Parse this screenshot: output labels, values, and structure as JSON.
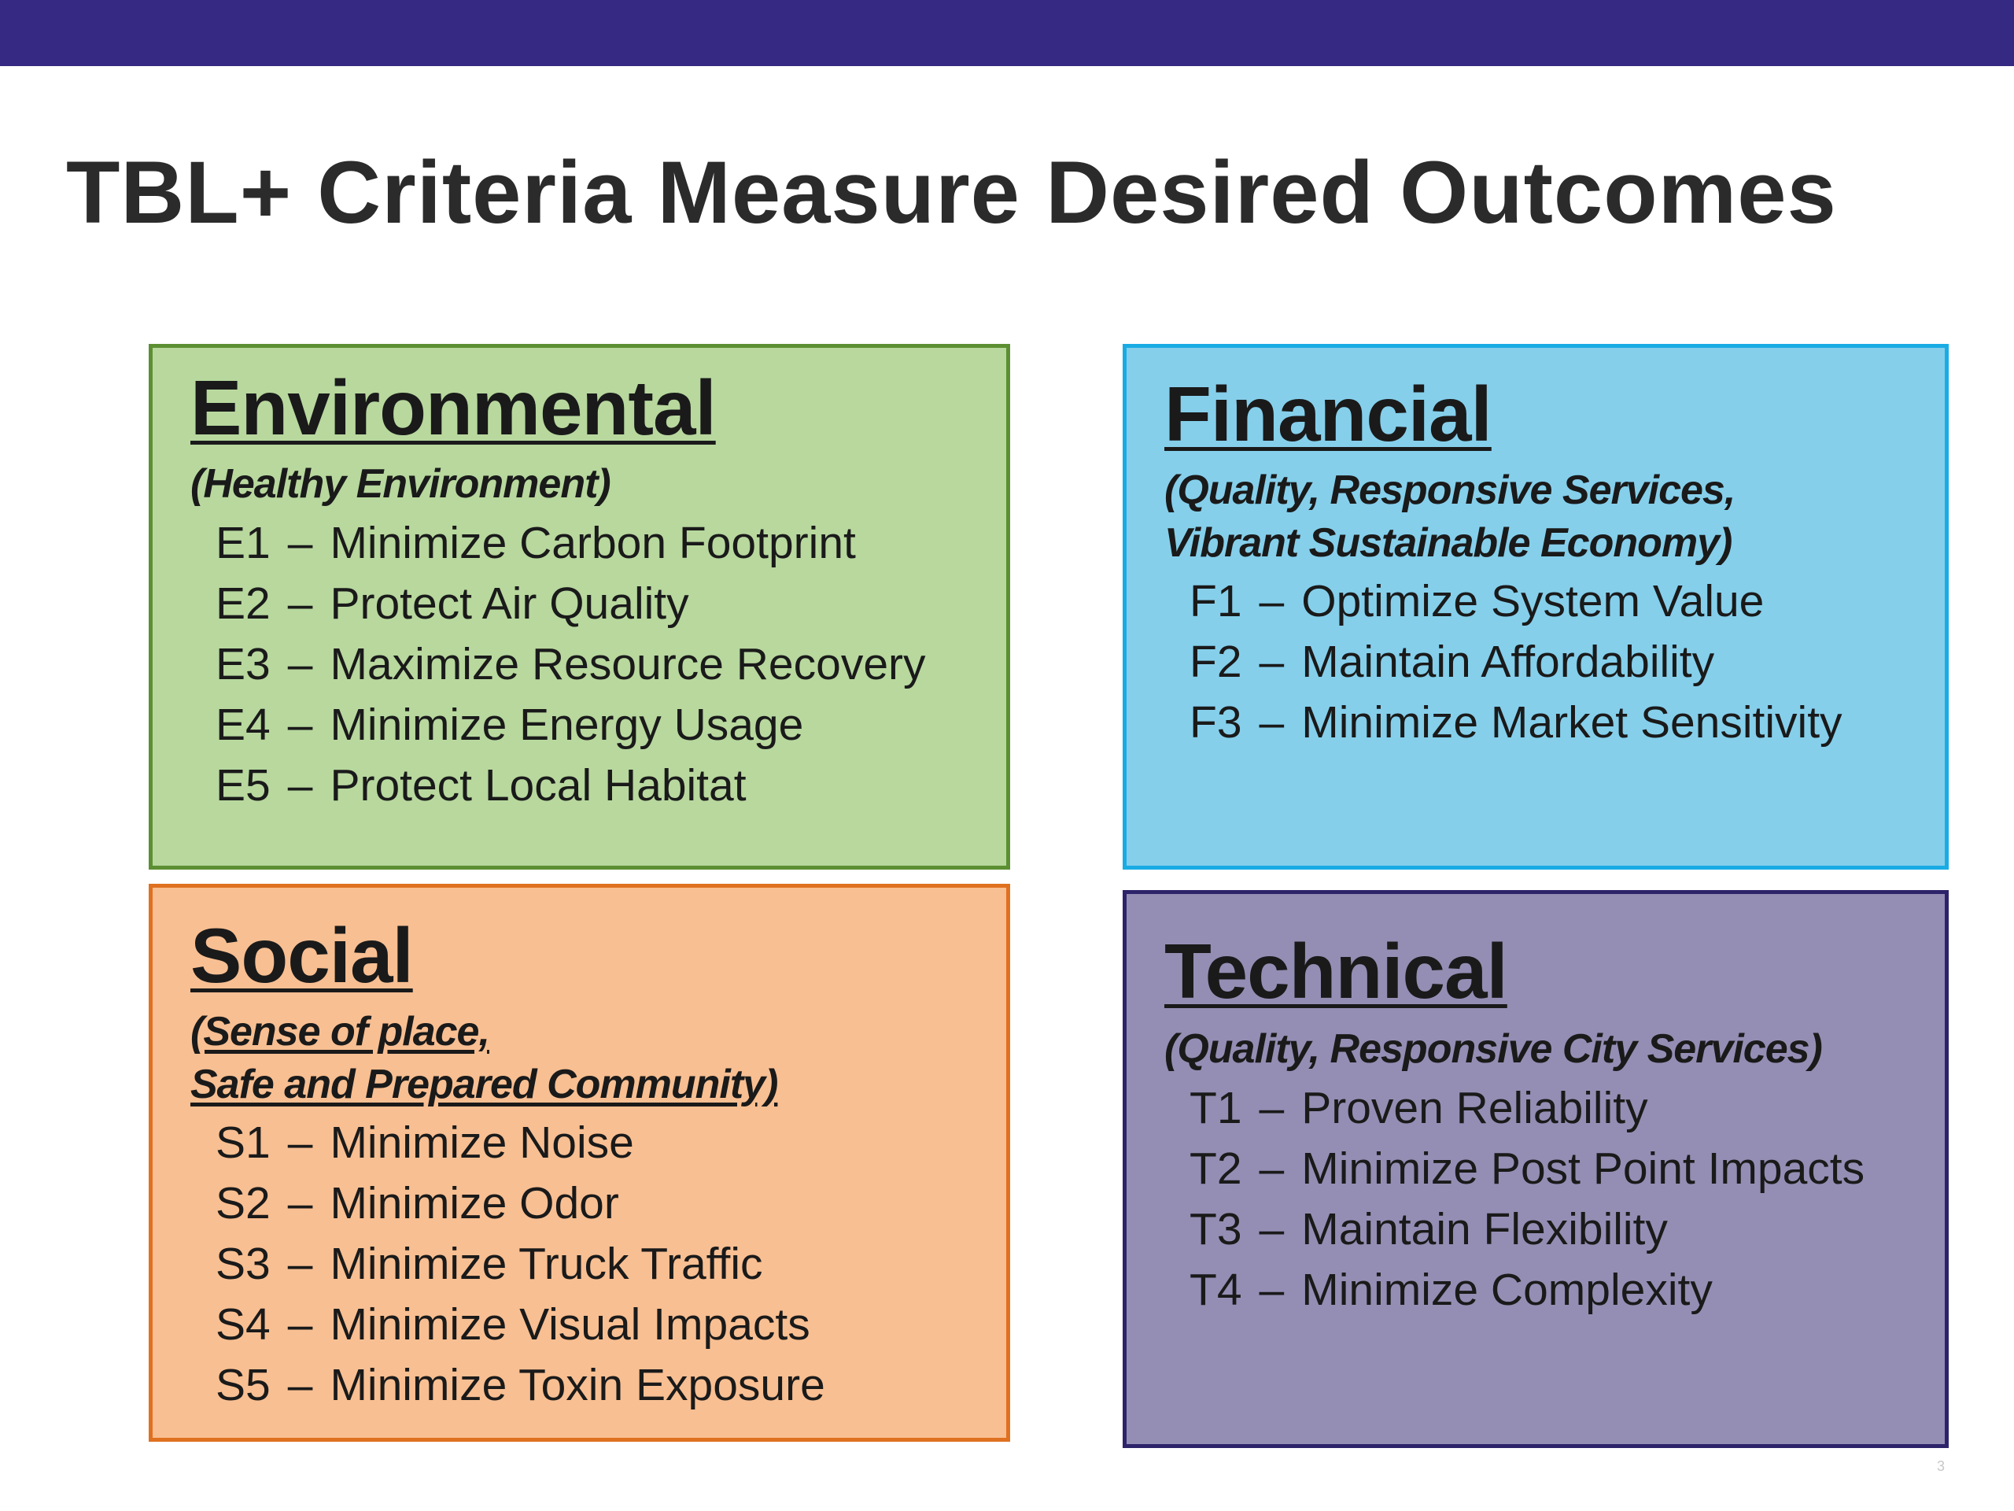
{
  "title": "TBL+ Criteria Measure Desired Outcomes",
  "page_number": "3",
  "colors": {
    "top_bar": "#352983",
    "environmental_fill": "#b8d89e",
    "financial_fill": "#85cfeb",
    "social_fill": "#f8bf92",
    "technical_fill": "#948eb4"
  },
  "environmental": {
    "heading": "Environmental",
    "subtitle_lines": [
      "(Healthy Environment)"
    ],
    "items": [
      {
        "code": "E1",
        "text": "Minimize Carbon Footprint"
      },
      {
        "code": "E2",
        "text": "Protect Air Quality"
      },
      {
        "code": "E3",
        "text": "Maximize Resource Recovery"
      },
      {
        "code": "E4",
        "text": "Minimize Energy Usage"
      },
      {
        "code": "E5",
        "text": "Protect Local Habitat"
      }
    ]
  },
  "financial": {
    "heading": "Financial",
    "subtitle_lines": [
      "(Quality, Responsive Services,",
      "Vibrant Sustainable Economy)"
    ],
    "items": [
      {
        "code": "F1",
        "text": "Optimize System Value"
      },
      {
        "code": "F2",
        "text": "Maintain Affordability"
      },
      {
        "code": "F3",
        "text": "Minimize Market Sensitivity"
      }
    ]
  },
  "social": {
    "heading": "Social",
    "subtitle_lines": [
      "(Sense of place,",
      "Safe and Prepared Community)"
    ],
    "items": [
      {
        "code": "S1",
        "text": "Minimize Noise"
      },
      {
        "code": "S2",
        "text": "Minimize Odor"
      },
      {
        "code": "S3",
        "text": "Minimize Truck Traffic"
      },
      {
        "code": "S4",
        "text": "Minimize Visual Impacts"
      },
      {
        "code": "S5",
        "text": "Minimize Toxin Exposure"
      }
    ]
  },
  "technical": {
    "heading": "Technical",
    "subtitle_lines": [
      "(Quality, Responsive City Services)"
    ],
    "items": [
      {
        "code": "T1",
        "text": "Proven Reliability"
      },
      {
        "code": "T2",
        "text": "Minimize Post Point Impacts"
      },
      {
        "code": "T3",
        "text": "Maintain Flexibility"
      },
      {
        "code": "T4",
        "text": "Minimize Complexity"
      }
    ]
  },
  "separator": "–"
}
